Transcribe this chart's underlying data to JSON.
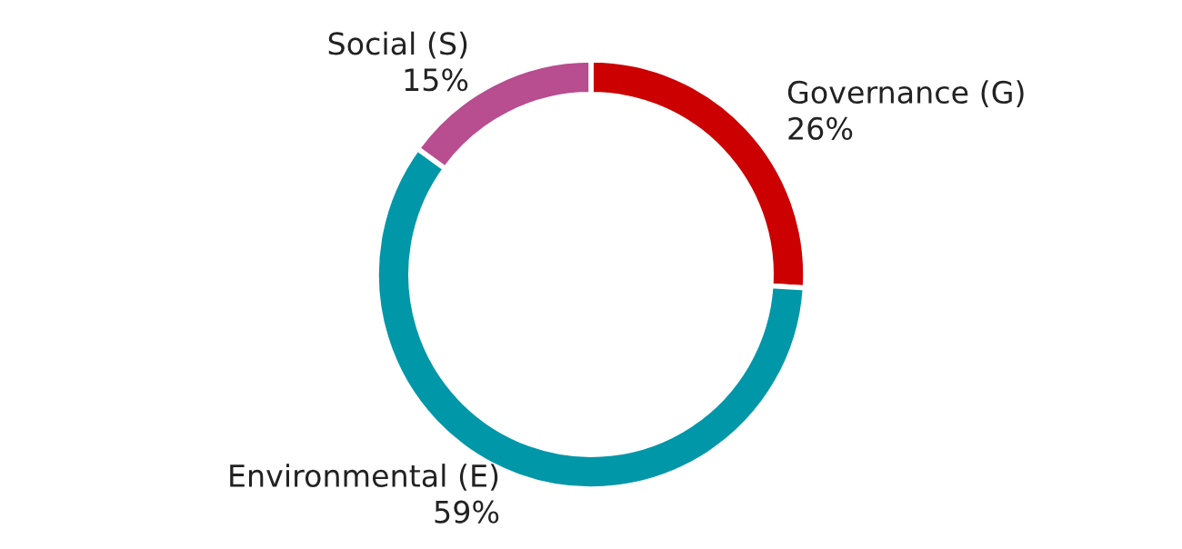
{
  "chart_data": {
    "type": "donut",
    "categories": [
      "Governance (G)",
      "Environmental (E)",
      "Social (S)"
    ],
    "values": [
      26,
      59,
      15
    ],
    "colors": [
      "#cc0000",
      "#0097a9",
      "#b84d90"
    ],
    "value_labels": [
      "26%",
      "59%",
      "15%"
    ],
    "legend": false
  }
}
